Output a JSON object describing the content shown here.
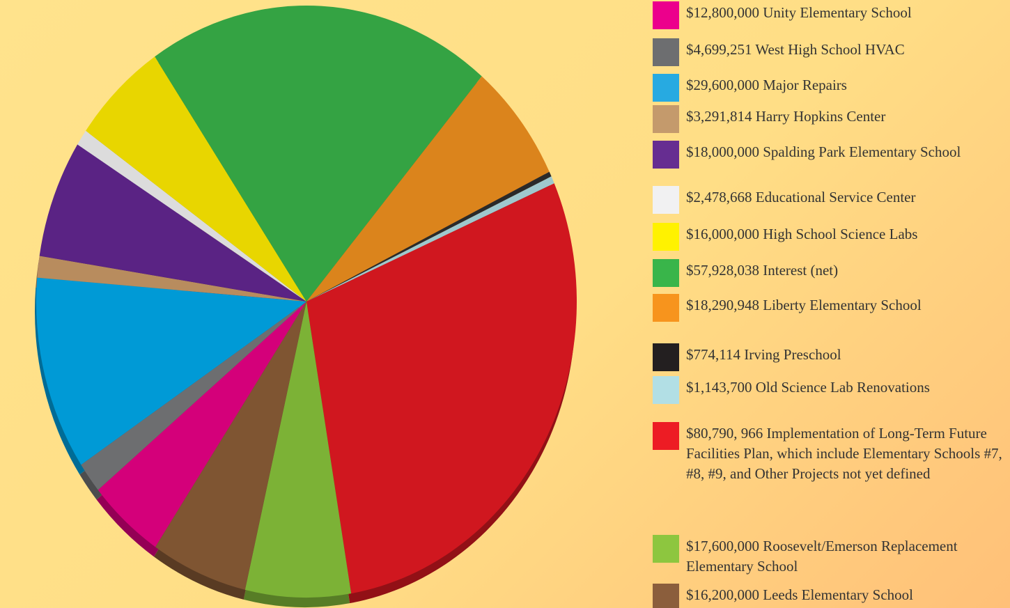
{
  "chart_data": {
    "type": "pie",
    "categories": [
      "Unity Elementary School",
      "West High School HVAC",
      "Major Repairs",
      "Harry Hopkins Center",
      "Spalding Park Elementary School",
      "Educational Service Center",
      "High School Science Labs",
      "Interest (net)",
      "Liberty Elementary School",
      "Irving Preschool",
      "Old Science Lab Renovations",
      "Implementation of Long-Term Future Facilities Plan, which include Elementary Schools #7, #8, #9, and Other Projects not yet defined",
      "Roosevelt/Emerson Replacement Elementary School",
      "Leeds Elementary School"
    ],
    "values": [
      12800000,
      4699251,
      29600000,
      3291814,
      18000000,
      2478668,
      16000000,
      57928038,
      18290948,
      774114,
      1143700,
      80790966,
      17600000,
      16200000
    ],
    "value_labels": [
      "$12,800,000",
      "$4,699,251",
      "$29,600,000",
      "$3,291,814",
      "$18,000,000",
      "$2,478,668",
      "$16,000,000",
      "$57,928,038",
      "$18,290,948",
      "$774,114",
      "$1,143,700",
      "$80,790, 966",
      "$17,600,000",
      "$16,200,000"
    ],
    "colors": [
      "#d4007a",
      "#6d6e70",
      "#009ad6",
      "#b88c5e",
      "#5a2384",
      "#dcdcdc",
      "#e8d600",
      "#34a343",
      "#db841c",
      "#2a2a2a",
      "#9fc8cd",
      "#d0171f",
      "#7cb236",
      "#7f5532"
    ],
    "legend_colors": [
      "#ec008c",
      "#6d6e70",
      "#27aae1",
      "#c49a6c",
      "#662d91",
      "#f1f1f2",
      "#fff200",
      "#39b54a",
      "#f7941d",
      "#231f20",
      "#b2dfe5",
      "#ed1c24",
      "#8dc63f",
      "#8b5e3c"
    ],
    "legend": "right"
  }
}
